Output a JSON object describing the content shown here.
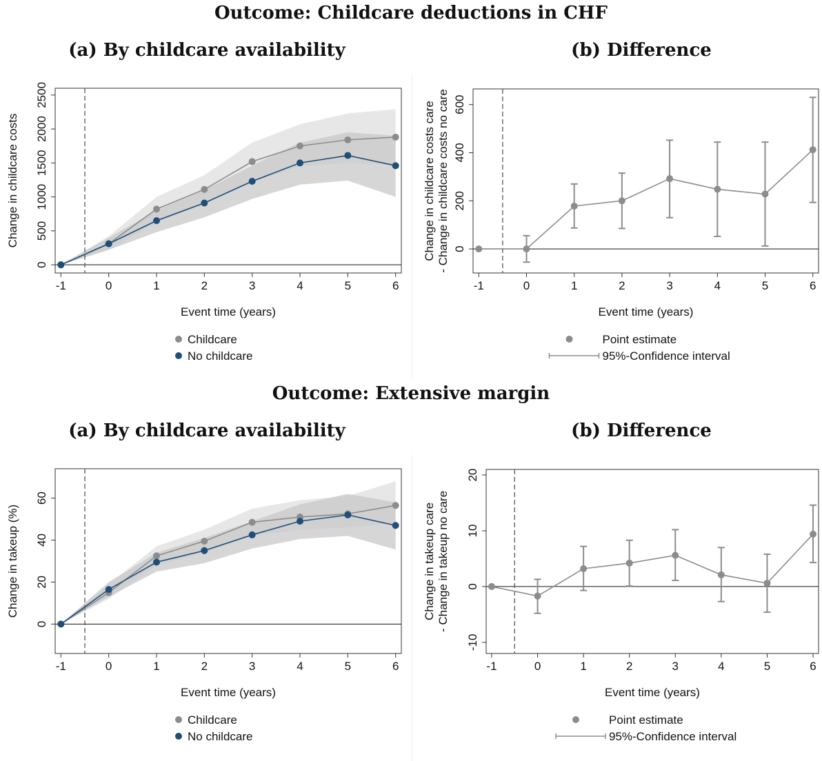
{
  "section_titles": [
    "Outcome: Childcare deductions in CHF",
    "Outcome: Extensive margin"
  ],
  "panel_titles": {
    "a": "(a) By childcare availability",
    "b": "(b) Difference"
  },
  "colors": {
    "childcare": "#8c8c8c",
    "no_childcare": "#1f4e79",
    "band_outer": "#e3e3e3",
    "band_mid": "#c8c8c8",
    "band_inner": "#a9a9a9",
    "difference": "#8c8c8c"
  },
  "legend_a": {
    "childcare": "Childcare",
    "no_childcare": "No childcare"
  },
  "legend_b": {
    "point": "Point estimate",
    "ci": "95%-Confidence interval"
  },
  "chart_data": [
    {
      "type": "line",
      "panel": "top-left",
      "title": "(a) By childcare availability",
      "xlabel": "Event time (years)",
      "ylabel": "Change in childcare costs",
      "x": [
        -1,
        0,
        1,
        2,
        3,
        4,
        5,
        6
      ],
      "xlim": [
        -1.12,
        6.12
      ],
      "ylim": [
        -120,
        2600
      ],
      "yticks": [
        0,
        500,
        1000,
        1500,
        2000,
        2500
      ],
      "event_line": -0.5,
      "series": [
        {
          "name": "Childcare",
          "values": [
            0,
            310,
            820,
            1110,
            1520,
            1750,
            1840,
            1880
          ],
          "ci_low": [
            0,
            220,
            620,
            900,
            1220,
            1450,
            1500,
            1470
          ],
          "ci_high": [
            0,
            420,
            1000,
            1320,
            1800,
            2070,
            2230,
            2290
          ]
        },
        {
          "name": "No childcare",
          "values": [
            0,
            310,
            650,
            910,
            1230,
            1500,
            1610,
            1460
          ],
          "ci_low": [
            0,
            220,
            480,
            700,
            970,
            1180,
            1240,
            1000
          ],
          "ci_high": [
            0,
            400,
            800,
            1100,
            1460,
            1800,
            1950,
            1900
          ]
        }
      ],
      "legend": [
        "Childcare",
        "No childcare"
      ],
      "legend_placement": "bottom"
    },
    {
      "type": "line",
      "panel": "top-right",
      "title": "(b) Difference",
      "xlabel": "Event time (years)",
      "ylabel": "Change in childcare costs care",
      "ylabel2": "- Change in childcare costs no care",
      "x": [
        -1,
        0,
        1,
        2,
        3,
        4,
        5,
        6
      ],
      "xlim": [
        -1.12,
        6.12
      ],
      "ylim": [
        -100,
        665
      ],
      "yticks": [
        0,
        200,
        400,
        600
      ],
      "event_line": -0.5,
      "series": [
        {
          "name": "Point estimate",
          "values": [
            0,
            0,
            178,
            200,
            292,
            248,
            228,
            412
          ],
          "ci_low": [
            0,
            -55,
            87,
            85,
            130,
            52,
            12,
            193
          ],
          "ci_high": [
            0,
            55,
            270,
            315,
            452,
            444,
            444,
            630
          ]
        }
      ],
      "legend": [
        "Point estimate",
        "95%-Confidence interval"
      ],
      "legend_placement": "bottom"
    },
    {
      "type": "line",
      "panel": "bottom-left",
      "title": "(a) By childcare availability",
      "xlabel": "Event time (years)",
      "ylabel": "Change in takeup (%)",
      "x": [
        -1,
        0,
        1,
        2,
        3,
        4,
        5,
        6
      ],
      "xlim": [
        -1.12,
        6.12
      ],
      "ylim": [
        -14,
        74
      ],
      "yticks": [
        0,
        20,
        40,
        60
      ],
      "event_line": -0.5,
      "series": [
        {
          "name": "Childcare",
          "values": [
            0,
            15,
            32.5,
            39.5,
            48.5,
            51,
            52.5,
            56.5
          ],
          "ci_low": [
            0,
            12,
            28,
            34,
            42,
            45,
            46,
            48
          ],
          "ci_high": [
            0,
            19,
            37,
            45,
            55,
            59,
            61,
            68
          ]
        },
        {
          "name": "No childcare",
          "values": [
            0,
            16.5,
            29.5,
            35,
            42.5,
            49,
            52,
            47
          ],
          "ci_low": [
            0,
            13,
            25,
            29,
            36,
            40.5,
            42,
            35.5
          ],
          "ci_high": [
            0,
            20,
            34,
            41,
            49,
            57,
            62,
            58
          ]
        }
      ],
      "legend": [
        "Childcare",
        "No childcare"
      ],
      "legend_placement": "bottom"
    },
    {
      "type": "line",
      "panel": "bottom-right",
      "title": "(b) Difference",
      "xlabel": "Event time (years)",
      "ylabel": "Change in takeup care",
      "ylabel2": "- Change in takeup no care",
      "x": [
        -1,
        0,
        1,
        2,
        3,
        4,
        5,
        6
      ],
      "xlim": [
        -1.12,
        6.12
      ],
      "ylim": [
        -12,
        21
      ],
      "yticks": [
        -10,
        0,
        10,
        20
      ],
      "event_line": -0.5,
      "series": [
        {
          "name": "Point estimate",
          "values": [
            0,
            -1.7,
            3.2,
            4.2,
            5.6,
            2.1,
            0.6,
            9.4
          ],
          "ci_low": [
            0,
            -4.8,
            -0.7,
            0.1,
            1.1,
            -2.7,
            -4.6,
            4.3
          ],
          "ci_high": [
            0,
            1.3,
            7.2,
            8.3,
            10.2,
            7.0,
            5.8,
            14.6
          ]
        }
      ],
      "legend": [
        "Point estimate",
        "95%-Confidence interval"
      ],
      "legend_placement": "bottom"
    }
  ]
}
